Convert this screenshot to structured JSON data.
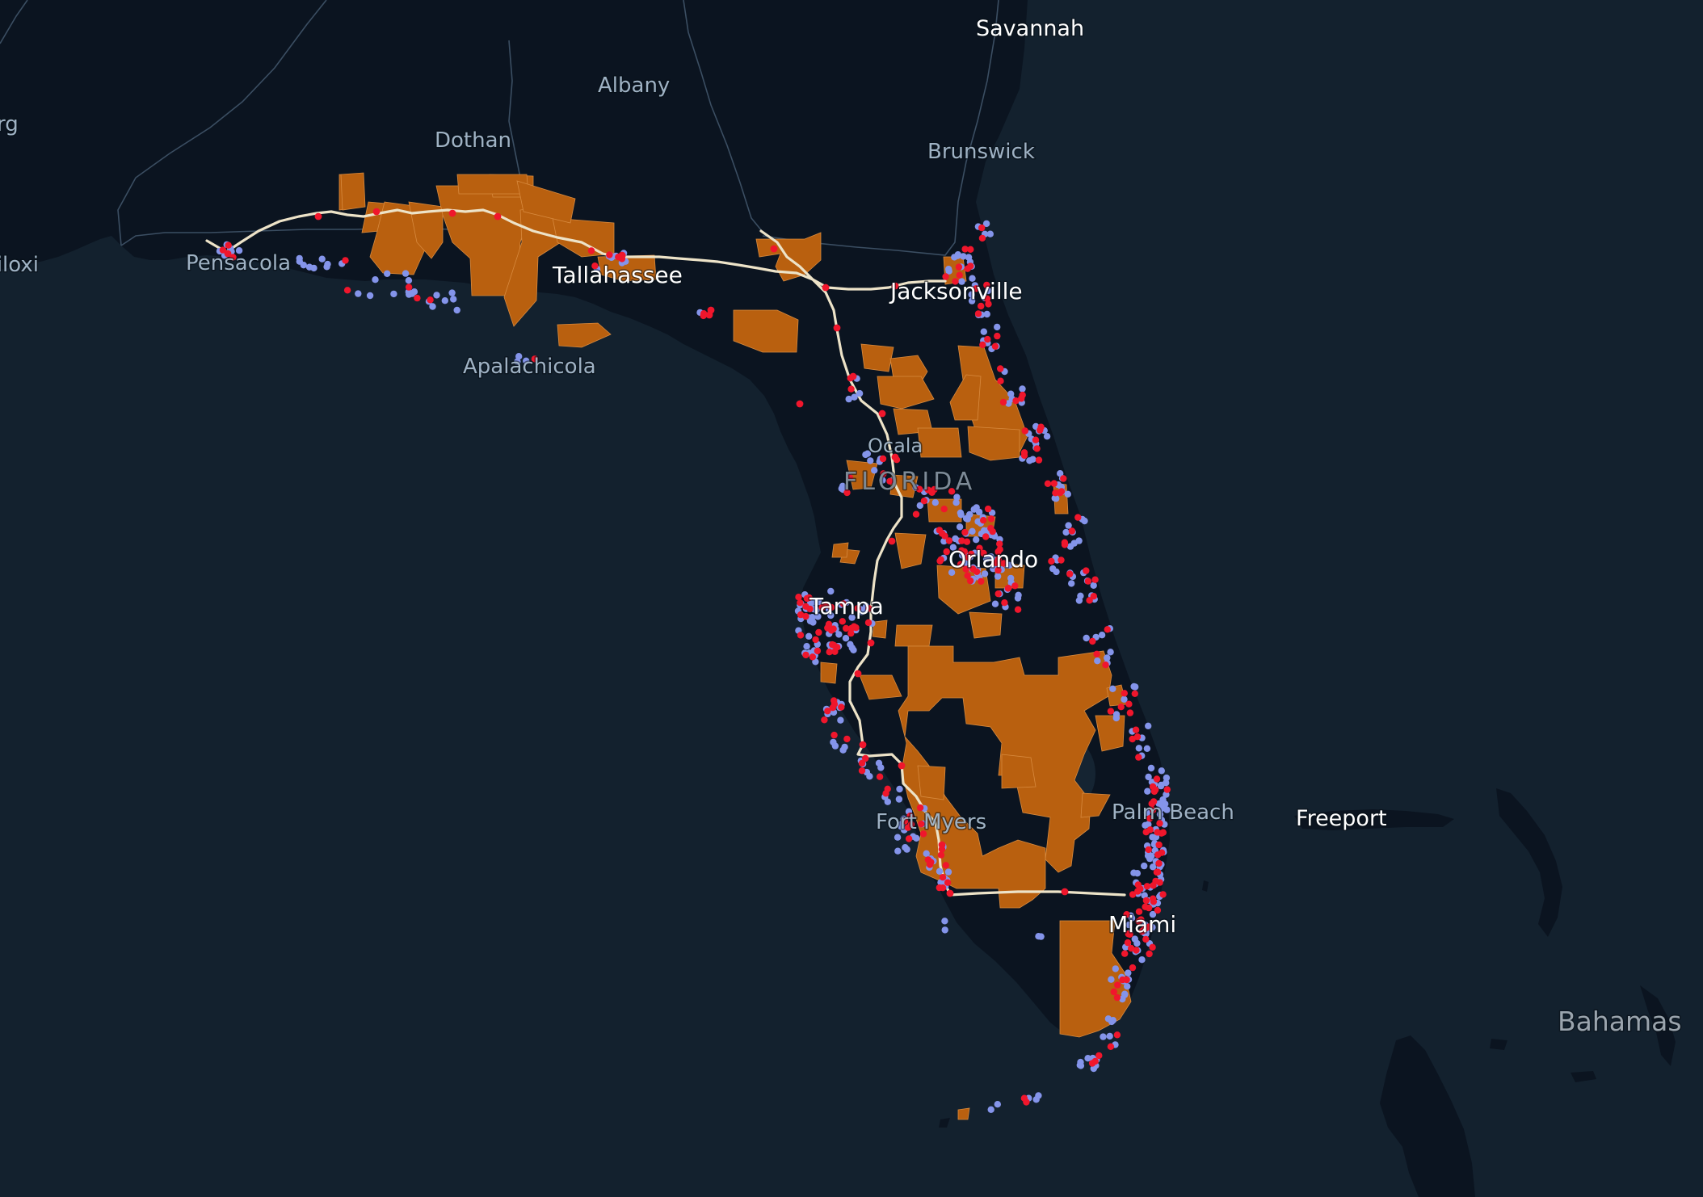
{
  "map": {
    "style": "dark basemap",
    "colors": {
      "water": "#13212e",
      "land": "#0b1420",
      "state_border": "#3b4e62",
      "highway": "#ede3c8",
      "region_fill": "#b9600f",
      "region_border": "#d88a3e",
      "point_blue": "#8494ea",
      "point_red": "#f0162c",
      "label_major": "#ffffff",
      "label_minor": "#9fb2c4",
      "label_state": "#7d8a97",
      "label_country": "#9aa4ad"
    },
    "labels": {
      "savannah": "Savannah",
      "albany": "Albany",
      "burg": "rg",
      "dothan": "Dothan",
      "brunswick": "Brunswick",
      "biloxi": "Biloxi",
      "pensacola": "Pensacola",
      "tallahassee": "Tallahassee",
      "jacksonville": "Jacksonville",
      "apalachicola": "Apalachicola",
      "ocala": "Ocala",
      "florida": "FLORIDA",
      "orlando": "Orlando",
      "tampa": "Tampa",
      "palm_beach": "Palm Beach",
      "freeport": "Freeport",
      "fort_myers": "Fort Myers",
      "miami": "Miami",
      "bahamas": "Bahamas"
    },
    "layers": [
      "regions",
      "highway",
      "blue-points",
      "red-points"
    ]
  }
}
